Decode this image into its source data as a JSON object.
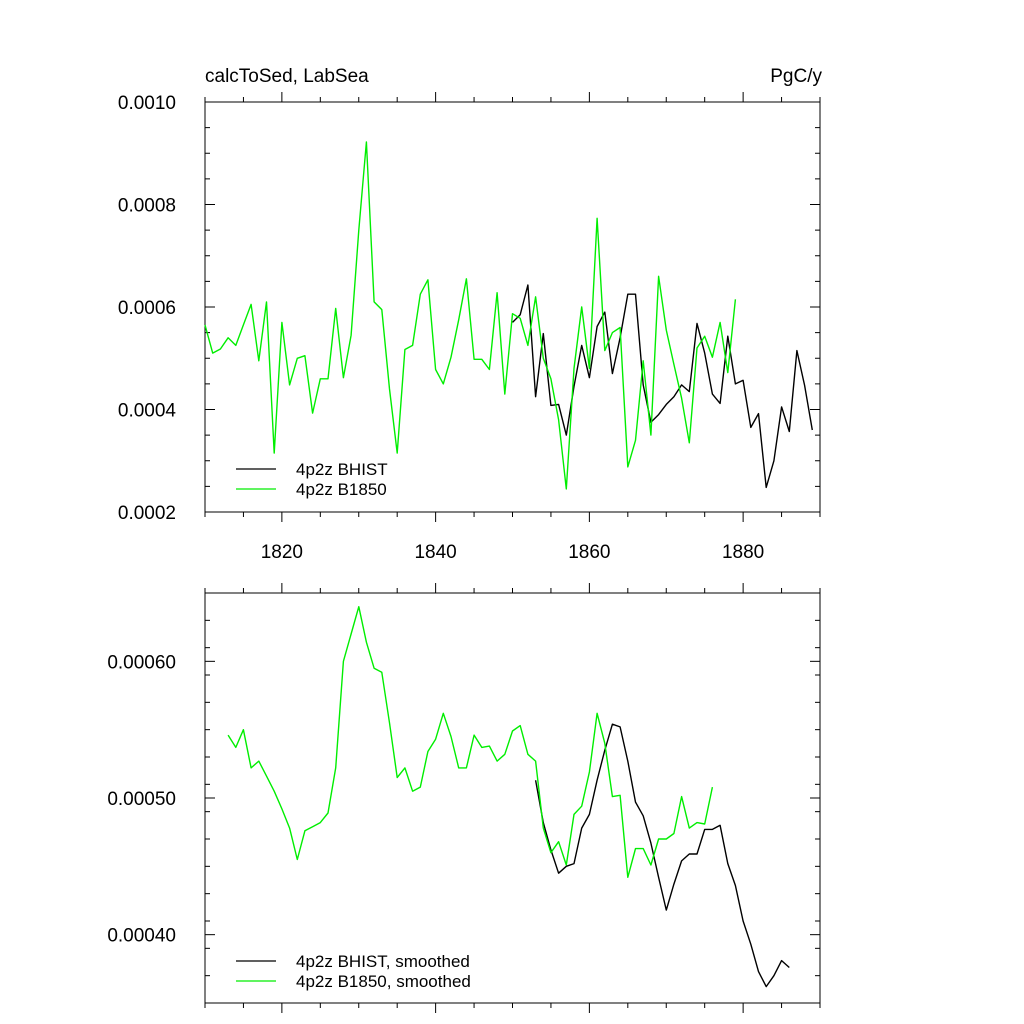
{
  "chart_data": [
    {
      "type": "line",
      "title_left": "calcToSed, LabSea",
      "title_right": "PgC/y",
      "xlim": [
        1810,
        1890
      ],
      "ylim": [
        0.0002,
        0.001
      ],
      "x_ticks": [
        1820,
        1840,
        1860,
        1880
      ],
      "x_tick_labels": [
        "1820",
        "1840",
        "1860",
        "1880"
      ],
      "y_ticks": [
        0.0002,
        0.0004,
        0.0006,
        0.0008,
        0.001
      ],
      "y_tick_labels": [
        "0.0002",
        "0.0004",
        "0.0006",
        "0.0008",
        "0.0010"
      ],
      "legend_position": "bottom-left",
      "series": [
        {
          "name": "4p2z BHIST",
          "color": "#000000",
          "x": [
            1850,
            1851,
            1852,
            1853,
            1854,
            1855,
            1856,
            1857,
            1858,
            1859,
            1860,
            1861,
            1862,
            1863,
            1864,
            1865,
            1866,
            1867,
            1868,
            1869,
            1870,
            1871,
            1872,
            1873,
            1874,
            1875,
            1876,
            1877,
            1878,
            1879,
            1880,
            1881,
            1882,
            1883,
            1884,
            1885,
            1886,
            1887,
            1888,
            1889
          ],
          "y": [
            0.00057,
            0.000585,
            0.000643,
            0.000425,
            0.000548,
            0.000408,
            0.00041,
            0.00035,
            0.000445,
            0.000525,
            0.000462,
            0.000562,
            0.00059,
            0.00047,
            0.00054,
            0.000625,
            0.000625,
            0.000448,
            0.000375,
            0.00039,
            0.00041,
            0.000425,
            0.000448,
            0.000435,
            0.000568,
            0.00051,
            0.00043,
            0.000412,
            0.000543,
            0.00045,
            0.000457,
            0.000365,
            0.000392,
            0.000248,
            0.0003,
            0.000405,
            0.000357,
            0.000515,
            0.000447,
            0.00036
          ]
        },
        {
          "name": "4p2z B1850",
          "color": "#00ee00",
          "x": [
            1810,
            1811,
            1812,
            1813,
            1814,
            1815,
            1816,
            1817,
            1818,
            1819,
            1820,
            1821,
            1822,
            1823,
            1824,
            1825,
            1826,
            1827,
            1828,
            1829,
            1830,
            1831,
            1832,
            1833,
            1834,
            1835,
            1836,
            1837,
            1838,
            1839,
            1840,
            1841,
            1842,
            1843,
            1844,
            1845,
            1846,
            1847,
            1848,
            1849,
            1850,
            1851,
            1852,
            1853,
            1854,
            1855,
            1856,
            1857,
            1858,
            1859,
            1860,
            1861,
            1862,
            1863,
            1864,
            1865,
            1866,
            1867,
            1868,
            1869,
            1870,
            1871,
            1872,
            1873,
            1874,
            1875,
            1876,
            1877,
            1878,
            1879
          ],
          "y": [
            0.000565,
            0.00051,
            0.000518,
            0.00054,
            0.000525,
            0.000565,
            0.000605,
            0.000495,
            0.00061,
            0.000315,
            0.00057,
            0.000448,
            0.0005,
            0.000505,
            0.000393,
            0.00046,
            0.00046,
            0.000597,
            0.000462,
            0.000545,
            0.00075,
            0.000922,
            0.00061,
            0.000595,
            0.00044,
            0.000315,
            0.000517,
            0.000525,
            0.000625,
            0.000653,
            0.000478,
            0.00045,
            0.000502,
            0.000575,
            0.000655,
            0.000498,
            0.000498,
            0.000478,
            0.000628,
            0.00043,
            0.000587,
            0.000578,
            0.000525,
            0.00062,
            0.0005,
            0.00046,
            0.00038,
            0.000245,
            0.00048,
            0.0006,
            0.00048,
            0.000773,
            0.000515,
            0.00055,
            0.00056,
            0.000288,
            0.00034,
            0.000495,
            0.00035,
            0.00066,
            0.000555,
            0.000488,
            0.000422,
            0.000335,
            0.00052,
            0.000543,
            0.000502,
            0.00057,
            0.000472,
            0.000615
          ]
        }
      ]
    },
    {
      "type": "line",
      "xlim": [
        1810,
        1890
      ],
      "ylim": [
        0.00035,
        0.00065
      ],
      "x_ticks": [
        1820,
        1840,
        1860,
        1880
      ],
      "y_ticks": [
        0.0004,
        0.0005,
        0.0006
      ],
      "y_tick_labels": [
        "0.00040",
        "0.00050",
        "0.00060"
      ],
      "legend_position": "bottom-left",
      "series": [
        {
          "name": "4p2z BHIST, smoothed",
          "color": "#000000",
          "x": [
            1853,
            1854,
            1855,
            1856,
            1857,
            1858,
            1859,
            1860,
            1861,
            1862,
            1863,
            1864,
            1865,
            1866,
            1867,
            1868,
            1869,
            1870,
            1871,
            1872,
            1873,
            1874,
            1875,
            1876,
            1877,
            1878,
            1879,
            1880,
            1881,
            1882,
            1883,
            1884,
            1885,
            1886
          ],
          "y": [
            0.000513,
            0.000482,
            0.000462,
            0.000445,
            0.00045,
            0.000452,
            0.000478,
            0.000488,
            0.000513,
            0.000535,
            0.000554,
            0.000552,
            0.000527,
            0.000497,
            0.000487,
            0.000467,
            0.000442,
            0.000418,
            0.000437,
            0.000454,
            0.000459,
            0.000459,
            0.000477,
            0.000477,
            0.00048,
            0.000452,
            0.000436,
            0.00041,
            0.000393,
            0.000373,
            0.000362,
            0.00037,
            0.000381,
            0.000376
          ]
        },
        {
          "name": "4p2z B1850, smoothed",
          "color": "#00ee00",
          "x": [
            1813,
            1814,
            1815,
            1816,
            1817,
            1818,
            1819,
            1820,
            1821,
            1822,
            1823,
            1824,
            1825,
            1826,
            1827,
            1828,
            1829,
            1830,
            1831,
            1832,
            1833,
            1834,
            1835,
            1836,
            1837,
            1838,
            1839,
            1840,
            1841,
            1842,
            1843,
            1844,
            1845,
            1846,
            1847,
            1848,
            1849,
            1850,
            1851,
            1852,
            1853,
            1854,
            1855,
            1856,
            1857,
            1858,
            1859,
            1860,
            1861,
            1862,
            1863,
            1864,
            1865,
            1866,
            1867,
            1868,
            1869,
            1870,
            1871,
            1872,
            1873,
            1874,
            1875,
            1876
          ],
          "y": [
            0.000546,
            0.000537,
            0.00055,
            0.000522,
            0.000527,
            0.000516,
            0.000505,
            0.000492,
            0.000478,
            0.000455,
            0.000476,
            0.000479,
            0.000482,
            0.000489,
            0.000522,
            0.0006,
            0.00062,
            0.00064,
            0.000614,
            0.000595,
            0.000592,
            0.000555,
            0.000515,
            0.000522,
            0.000505,
            0.000508,
            0.000534,
            0.000543,
            0.000562,
            0.000545,
            0.000522,
            0.000522,
            0.000546,
            0.000537,
            0.000538,
            0.000527,
            0.000532,
            0.000549,
            0.000553,
            0.000532,
            0.000527,
            0.000478,
            0.00046,
            0.000468,
            0.000451,
            0.000488,
            0.000494,
            0.000519,
            0.000562,
            0.00054,
            0.000501,
            0.000502,
            0.000442,
            0.000463,
            0.000463,
            0.000451,
            0.00047,
            0.00047,
            0.000474,
            0.000501,
            0.000478,
            0.000482,
            0.000481,
            0.000508
          ]
        }
      ]
    }
  ]
}
